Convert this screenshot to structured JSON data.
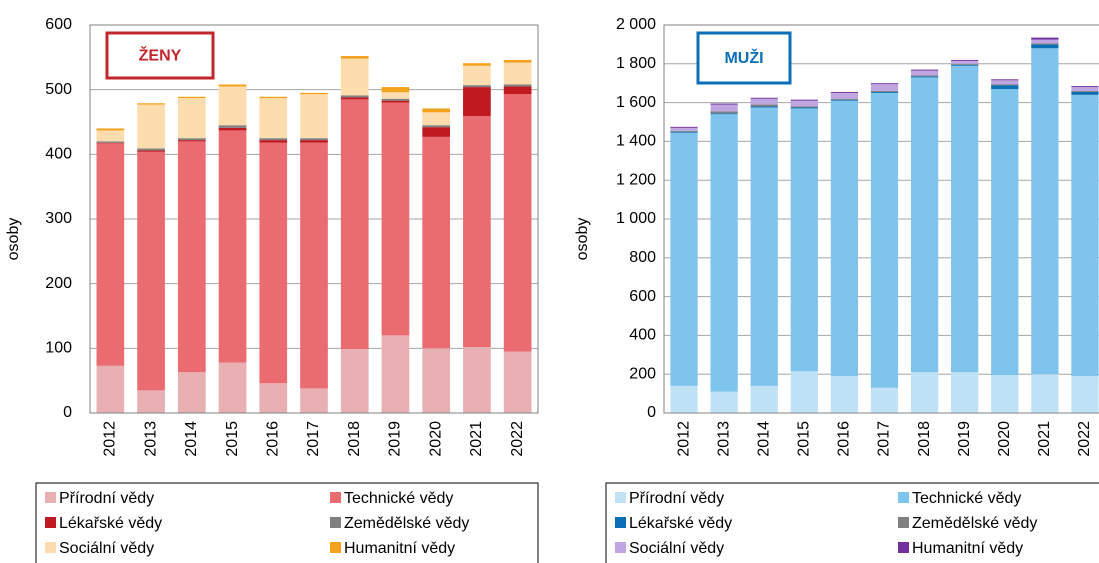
{
  "chart_data": [
    {
      "type": "bar",
      "stacked": true,
      "label": "ŽENY",
      "y_label": "osoby",
      "categories": [
        "2012",
        "2013",
        "2014",
        "2015",
        "2016",
        "2017",
        "2018",
        "2019",
        "2020",
        "2021",
        "2022"
      ],
      "ylim": [
        0,
        600
      ],
      "yticks": [
        0,
        100,
        200,
        300,
        400,
        500,
        600
      ],
      "grid": true,
      "legend": "bottom",
      "series": [
        {
          "name": "Přírodní vědy",
          "color": "#e8b0b3",
          "values": [
            73,
            35,
            63,
            78,
            46,
            38,
            99,
            120,
            100,
            102,
            95
          ]
        },
        {
          "name": "Technické vědy",
          "color": "#ea6b70",
          "values": [
            344,
            369,
            357,
            359,
            372,
            380,
            386,
            360,
            327,
            357,
            398
          ]
        },
        {
          "name": "Lékařské vědy",
          "color": "#c0191f",
          "values": [
            1,
            2,
            2,
            4,
            4,
            4,
            3,
            3,
            15,
            45,
            12
          ]
        },
        {
          "name": "Zemědělské vědy",
          "color": "#808080",
          "values": [
            2,
            3,
            3,
            4,
            3,
            3,
            3,
            3,
            3,
            3,
            3
          ]
        },
        {
          "name": "Sociální vědy",
          "color": "#fddcad",
          "values": [
            17,
            68,
            62,
            60,
            62,
            68,
            57,
            10,
            20,
            30,
            34
          ]
        },
        {
          "name": "Humanitní vědy",
          "color": "#f4a21e",
          "values": [
            3,
            2,
            2,
            3,
            2,
            2,
            4,
            8,
            6,
            4,
            4
          ]
        }
      ]
    },
    {
      "type": "bar",
      "stacked": true,
      "label": "MUŽI",
      "y_label": "osoby",
      "categories": [
        "2012",
        "2013",
        "2014",
        "2015",
        "2016",
        "2017",
        "2018",
        "2019",
        "2020",
        "2021",
        "2022"
      ],
      "ylim": [
        0,
        2000
      ],
      "yticks": [
        0,
        200,
        400,
        600,
        800,
        {
          "value": 1000,
          "label": "1 000"
        },
        {
          "value": 1200,
          "label": "1 200"
        },
        {
          "value": 1400,
          "label": "1 400"
        },
        {
          "value": 1600,
          "label": "1 600"
        },
        {
          "value": 1800,
          "label": "1 800"
        },
        {
          "value": 2000,
          "label": "2 000"
        }
      ],
      "grid": true,
      "legend": "bottom",
      "series": [
        {
          "name": "Přírodní vědy",
          "color": "#bfe2f7",
          "values": [
            140,
            110,
            140,
            215,
            190,
            130,
            210,
            210,
            195,
            200,
            190
          ]
        },
        {
          "name": "Technické vědy",
          "color": "#7fc4ec",
          "values": [
            1305,
            1430,
            1435,
            1355,
            1420,
            1520,
            1520,
            1580,
            1475,
            1680,
            1450
          ]
        },
        {
          "name": "Lékařské vědy",
          "color": "#0a6fb5",
          "values": [
            5,
            5,
            5,
            5,
            5,
            5,
            5,
            5,
            20,
            20,
            15
          ]
        },
        {
          "name": "Zemědělské vědy",
          "color": "#808080",
          "values": [
            5,
            10,
            10,
            5,
            5,
            5,
            5,
            5,
            5,
            5,
            5
          ]
        },
        {
          "name": "Sociální vědy",
          "color": "#c0a6e0",
          "values": [
            15,
            35,
            30,
            30,
            30,
            35,
            25,
            15,
            20,
            20,
            20
          ]
        },
        {
          "name": "Humanitní vědy",
          "color": "#7030a0",
          "values": [
            5,
            5,
            5,
            5,
            5,
            5,
            5,
            5,
            5,
            10,
            5
          ]
        }
      ]
    }
  ]
}
